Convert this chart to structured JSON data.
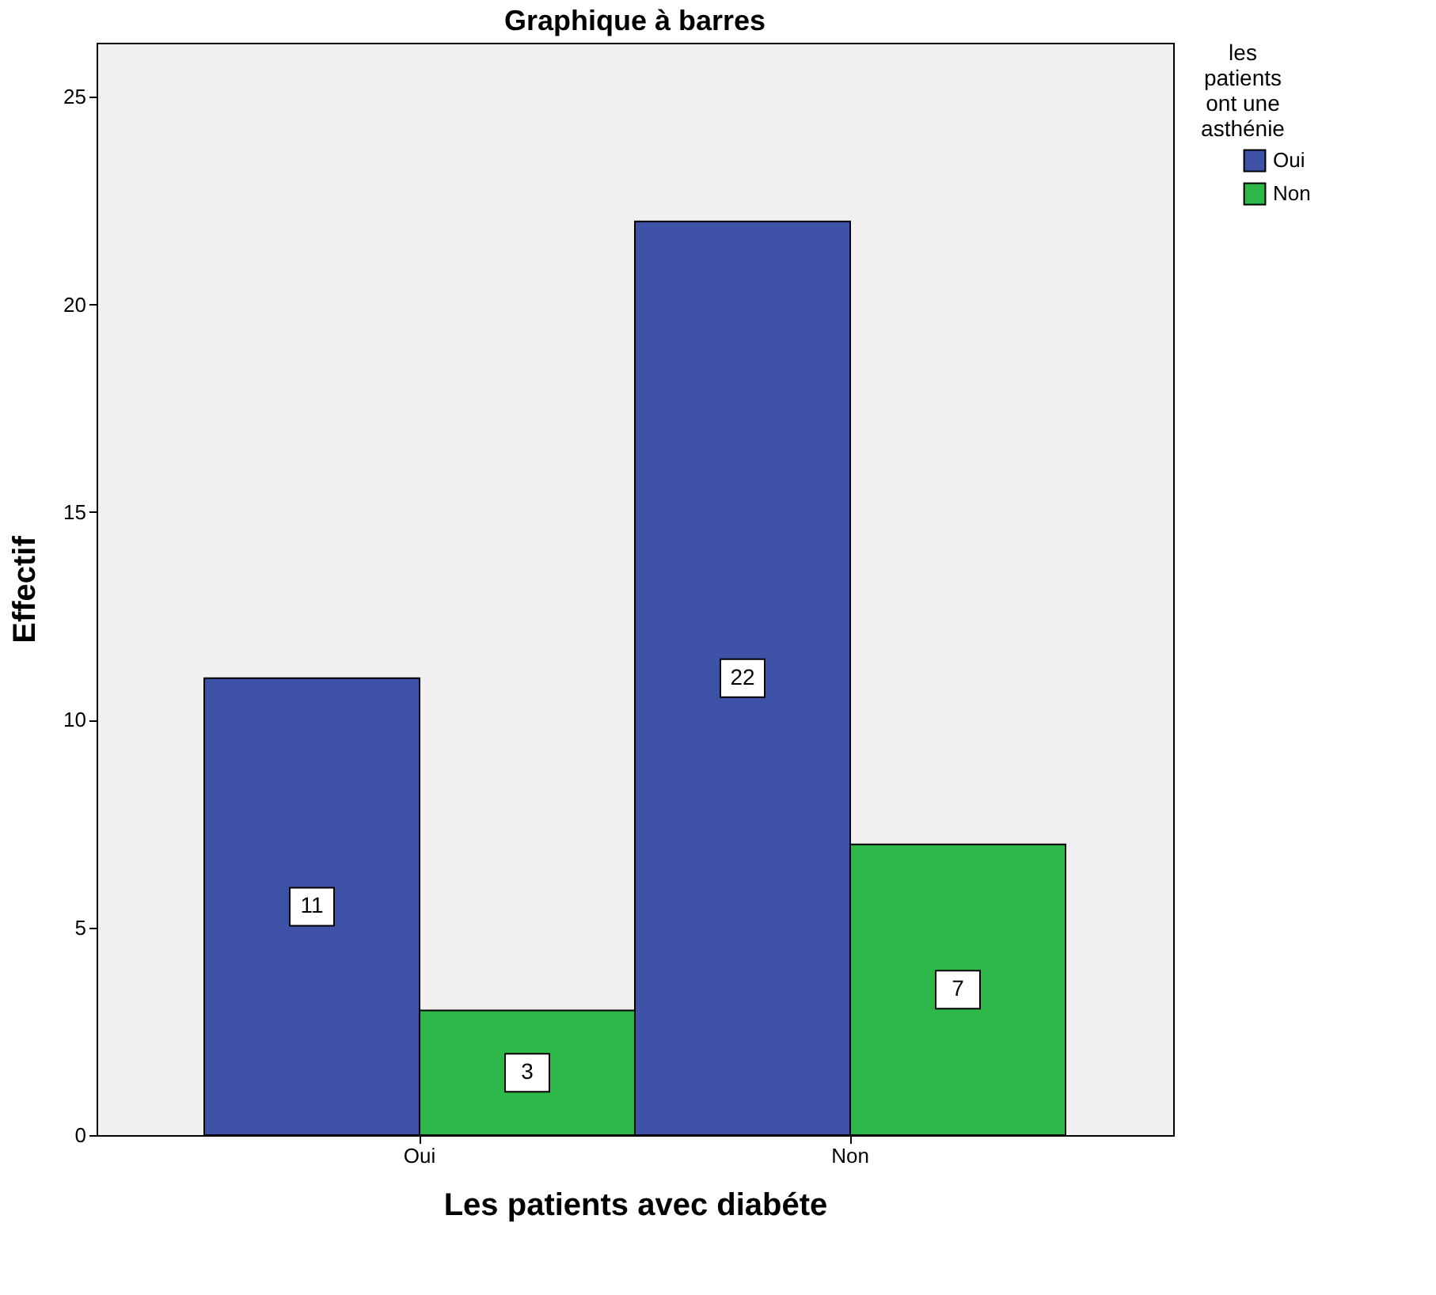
{
  "chart_data": {
    "type": "bar",
    "title": "Graphique à barres",
    "xlabel": "Les patients avec diabéte",
    "ylabel": "Effectif",
    "legend_title": "les patients ont une asthénie",
    "categories": [
      "Oui",
      "Non"
    ],
    "series": [
      {
        "name": "Oui",
        "color": "#3e53a8",
        "values": [
          11,
          22
        ]
      },
      {
        "name": "Non",
        "color": "#2fb84a",
        "values": [
          3,
          7
        ]
      }
    ],
    "ylim": [
      0,
      26.3
    ],
    "yticks": [
      0,
      5,
      10,
      15,
      20,
      25
    ],
    "grid": false,
    "legend": "top right",
    "data_labels": true
  }
}
